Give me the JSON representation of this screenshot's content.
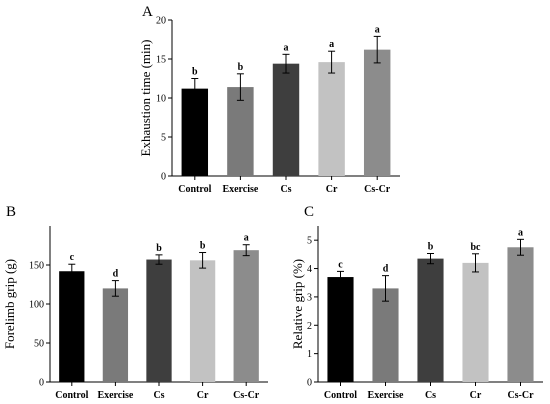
{
  "chart_data": [
    {
      "panel": "A",
      "type": "bar",
      "categories": [
        "Control",
        "Exercise",
        "Cs",
        "Cr",
        "Cs-Cr"
      ],
      "values": [
        11.2,
        11.4,
        14.4,
        14.6,
        16.2
      ],
      "errors": [
        1.3,
        1.7,
        1.2,
        1.4,
        1.7
      ],
      "significance": [
        "b",
        "b",
        "a",
        "a",
        "a"
      ],
      "ylabel": "Exhaustion time (min)",
      "ylim": [
        0,
        20
      ],
      "yticks": [
        0,
        5,
        10,
        15,
        20
      ],
      "colors": [
        "#000000",
        "#7a7a7a",
        "#3e3e3e",
        "#c2c2c2",
        "#8c8c8c"
      ]
    },
    {
      "panel": "B",
      "type": "bar",
      "categories": [
        "Control",
        "Exercise",
        "Cs",
        "Cr",
        "Cs-Cr"
      ],
      "values": [
        142,
        120,
        157,
        156,
        169
      ],
      "errors": [
        9,
        10,
        6,
        10,
        7
      ],
      "significance": [
        "c",
        "d",
        "b",
        "b",
        "a"
      ],
      "ylabel": "Forelimb grip (g)",
      "ylim": [
        0,
        200
      ],
      "yticks": [
        0,
        50,
        100,
        150
      ],
      "colors": [
        "#000000",
        "#7a7a7a",
        "#3e3e3e",
        "#c2c2c2",
        "#8c8c8c"
      ]
    },
    {
      "panel": "C",
      "type": "bar",
      "categories": [
        "Control",
        "Exercise",
        "Cs",
        "Cr",
        "Cs-Cr"
      ],
      "values": [
        3.7,
        3.3,
        4.35,
        4.2,
        4.75
      ],
      "errors": [
        0.2,
        0.45,
        0.18,
        0.32,
        0.28
      ],
      "significance": [
        "c",
        "d",
        "b",
        "bc",
        "a"
      ],
      "ylabel": "Relative grip (%)",
      "ylim": [
        0,
        5.5
      ],
      "yticks": [
        0,
        1,
        2,
        3,
        4,
        5
      ],
      "colors": [
        "#000000",
        "#7a7a7a",
        "#3e3e3e",
        "#c2c2c2",
        "#8c8c8c"
      ]
    }
  ]
}
